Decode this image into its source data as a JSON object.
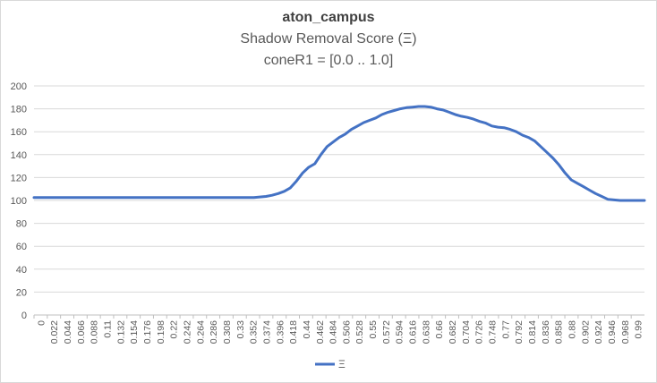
{
  "chart_data": {
    "type": "line",
    "title": "aton_campus",
    "subtitle": "Shadow Removal Score (Ξ)",
    "subtitle2": "coneR1 = [0.0 .. 1.0]",
    "xlabel": "",
    "ylabel": "",
    "ylim": [
      0,
      200
    ],
    "yticks": [
      0,
      20,
      40,
      60,
      80,
      100,
      120,
      140,
      160,
      180,
      200
    ],
    "xtick_labels": [
      "0",
      "0.022",
      "0.044",
      "0.066",
      "0.088",
      "0.11",
      "0.132",
      "0.154",
      "0.176",
      "0.198",
      "0.22",
      "0.242",
      "0.264",
      "0.286",
      "0.308",
      "0.33",
      "0.352",
      "0.374",
      "0.396",
      "0.418",
      "0.44",
      "0.462",
      "0.484",
      "0.506",
      "0.528",
      "0.55",
      "0.572",
      "0.594",
      "0.616",
      "0.638",
      "0.66",
      "0.682",
      "0.704",
      "0.726",
      "0.748",
      "0.77",
      "0.792",
      "0.814",
      "0.836",
      "0.858",
      "0.88",
      "0.902",
      "0.924",
      "0.946",
      "0.968",
      "0.99"
    ],
    "grid": true,
    "legend_position": "bottom",
    "series": [
      {
        "name": "Ξ",
        "color": "#4472c4",
        "x": [
          0,
          0.1,
          0.2,
          0.3,
          0.36,
          0.38,
          0.39,
          0.4,
          0.41,
          0.42,
          0.43,
          0.44,
          0.45,
          0.46,
          0.47,
          0.48,
          0.49,
          0.5,
          0.51,
          0.52,
          0.53,
          0.54,
          0.55,
          0.56,
          0.57,
          0.58,
          0.59,
          0.6,
          0.61,
          0.62,
          0.63,
          0.64,
          0.65,
          0.66,
          0.67,
          0.68,
          0.69,
          0.7,
          0.71,
          0.72,
          0.73,
          0.74,
          0.75,
          0.76,
          0.77,
          0.78,
          0.79,
          0.8,
          0.81,
          0.82,
          0.83,
          0.84,
          0.85,
          0.86,
          0.87,
          0.88,
          0.89,
          0.9,
          0.91,
          0.92,
          0.93,
          0.94,
          0.95,
          0.96,
          0.97,
          0.98,
          0.99,
          1.0
        ],
        "values": [
          102.5,
          102.5,
          102.5,
          102.5,
          102.5,
          103.5,
          104.5,
          106,
          108,
          111,
          117,
          124,
          129,
          132,
          140,
          147,
          151,
          155,
          158,
          162,
          165,
          168,
          170,
          172,
          175,
          177,
          178.5,
          180,
          181,
          181.5,
          182,
          182,
          181.5,
          180,
          179,
          177,
          175,
          173.5,
          172.5,
          171,
          169,
          167.5,
          165,
          164,
          163.5,
          162,
          160,
          157,
          155,
          152,
          147,
          142,
          137,
          131,
          124,
          118,
          115,
          112,
          109,
          106,
          103.5,
          101,
          100.5,
          100,
          100,
          100,
          100,
          100
        ]
      }
    ]
  }
}
